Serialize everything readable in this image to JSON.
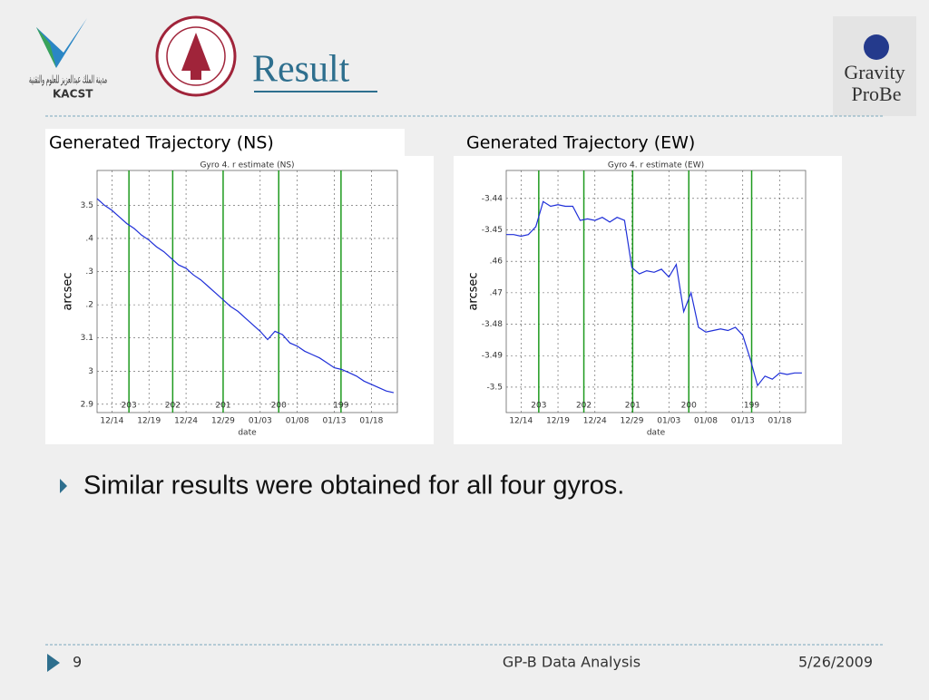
{
  "slide": {
    "title": "Result",
    "caption_left": "Generated  Trajectory  (NS)",
    "caption_right": "Generated  Trajectory (EW)",
    "bullet": "Similar results were obtained for all four gyros.",
    "page": "9",
    "footer": "GP-B Data Analysis",
    "date": "5/26/2009",
    "logo_left": "KACST",
    "logo_left_arabic": "مدينة الملك عبدالعزيز للعلوم والتقنية",
    "logo_right_1": "Gravity",
    "logo_right_2": "ProBe"
  },
  "chart_data": [
    {
      "type": "line",
      "title": "Gyro 4.  r estimate (NS)",
      "xlabel": "date",
      "ylabel": "arcsec",
      "color": "#1f2fd8",
      "grid": true,
      "categories": [
        null,
        null,
        "12/14",
        null,
        null,
        null,
        null,
        "12/19",
        null,
        null,
        null,
        null,
        "12/24",
        null,
        null,
        null,
        null,
        "12/29",
        null,
        null,
        null,
        null,
        "01/03",
        null,
        null,
        null,
        null,
        "01/08",
        null,
        null,
        null,
        null,
        "01/13",
        null,
        null,
        null,
        null,
        "01/18",
        null,
        null,
        null
      ],
      "values": [
        3.52,
        3.5,
        3.485,
        3.465,
        3.445,
        3.43,
        3.41,
        3.395,
        3.375,
        3.36,
        3.34,
        3.32,
        3.31,
        3.29,
        3.275,
        3.255,
        3.235,
        3.215,
        3.195,
        3.18,
        3.16,
        3.14,
        3.12,
        3.095,
        3.12,
        3.11,
        3.085,
        3.075,
        3.06,
        3.05,
        3.04,
        3.025,
        3.01,
        3.005,
        2.995,
        2.985,
        2.97,
        2.96,
        2.95,
        2.94,
        2.935
      ],
      "ylim": [
        2.875,
        3.605
      ],
      "yticks": [
        {
          "value": 3.5,
          "label": "3.5"
        },
        {
          "value": 3.4,
          "label": ".4"
        },
        {
          "value": 3.3,
          "label": ".3"
        },
        {
          "value": 3.2,
          "label": ".2"
        },
        3.1,
        3,
        2.9
      ],
      "markers": [
        {
          "label": "203",
          "x": 4.3
        },
        {
          "label": "202",
          "x": 10.2
        },
        {
          "label": "201",
          "x": 17
        },
        {
          "label": "200",
          "x": 24.5
        },
        {
          "label": "199",
          "x": 32.9
        }
      ],
      "marker_color": "#1e9a1e"
    },
    {
      "type": "line",
      "title": "Gyro 4.  r estimate (EW)",
      "xlabel": "date",
      "ylabel": "arcsec",
      "color": "#1f2fd8",
      "grid": true,
      "categories": [
        null,
        null,
        "12/14",
        null,
        null,
        null,
        null,
        "12/19",
        null,
        null,
        null,
        null,
        "12/24",
        null,
        null,
        null,
        null,
        "12/29",
        null,
        null,
        null,
        null,
        "01/03",
        null,
        null,
        null,
        null,
        "01/08",
        null,
        null,
        null,
        null,
        "01/13",
        null,
        null,
        null,
        null,
        "01/18",
        null,
        null,
        null
      ],
      "values": [
        -3.4515,
        -3.4515,
        -3.452,
        -3.4515,
        -3.449,
        -3.441,
        -3.4425,
        -3.442,
        -3.4425,
        -3.4425,
        -3.447,
        -3.4465,
        -3.447,
        -3.446,
        -3.4475,
        -3.446,
        -3.447,
        -3.462,
        -3.464,
        -3.463,
        -3.4635,
        -3.4625,
        -3.465,
        -3.461,
        -3.476,
        -3.47,
        -3.481,
        -3.4825,
        -3.482,
        -3.4815,
        -3.482,
        -3.481,
        -3.4835,
        -3.491,
        -3.4995,
        -3.4965,
        -3.4975,
        -3.4955,
        -3.496,
        -3.4955,
        -3.4955
      ],
      "ylim": [
        -3.5081,
        -3.4311
      ],
      "yticks": [
        -3.44,
        -3.45,
        {
          "value": -3.46,
          "label": ".46"
        },
        {
          "value": -3.47,
          "label": ".47"
        },
        -3.48,
        -3.49,
        -3.5
      ],
      "markers": [
        {
          "label": "203",
          "x": 4.4
        },
        {
          "label": "202",
          "x": 10.5
        },
        {
          "label": "201",
          "x": 17.1
        },
        {
          "label": "200",
          "x": 24.7
        },
        {
          "label": "199",
          "x": 33.2
        }
      ],
      "marker_color": "#1e9a1e"
    }
  ]
}
